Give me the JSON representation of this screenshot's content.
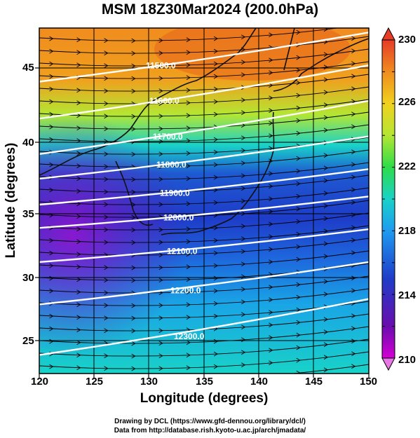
{
  "title": "MSM 18Z30Mar2024 (200.0hPa)",
  "axes": {
    "xlabel": "Longitude (degrees)",
    "ylabel": "Latitude  (degrees)",
    "xticks": [
      "120",
      "125",
      "130",
      "135",
      "140",
      "145",
      "150"
    ],
    "yticks": [
      "45",
      "40",
      "35",
      "30",
      "25"
    ]
  },
  "colorbar": {
    "labels": [
      "230",
      "226",
      "222",
      "218",
      "214",
      "210"
    ],
    "min": 210,
    "max": 230,
    "colors": [
      "#d400d4",
      "#6a0dad",
      "#1e3cc8",
      "#1e9bf0",
      "#19d2c8",
      "#2edc4a",
      "#b4e632",
      "#f0d21e",
      "#f08c1e",
      "#e63c28"
    ]
  },
  "contours": [
    {
      "label": "11500.0",
      "lat_west": 44.0,
      "lat_east": 47.6
    },
    {
      "label": "11600.0",
      "lat_west": 41.3,
      "lat_east": 45.2
    },
    {
      "label": "11700.0",
      "lat_west": 38.7,
      "lat_east": 42.6
    },
    {
      "label": "11800.0",
      "lat_west": 36.9,
      "lat_east": 40.0
    },
    {
      "label": "11900.0",
      "lat_west": 35.0,
      "lat_east": 37.6
    },
    {
      "label": "12000.0",
      "lat_west": 33.3,
      "lat_east": 35.6
    },
    {
      "label": "12100.0",
      "lat_west": 30.8,
      "lat_east": 33.2
    },
    {
      "label": "12200.0",
      "lat_west": 27.7,
      "lat_east": 30.8
    },
    {
      "label": "12300.0",
      "lat_west": 24.0,
      "lat_east": 28.1
    }
  ],
  "credits": {
    "line1": "Drawing by DCL (https://www.gfd-dennou.org/library/dcl/)",
    "line2": "Data from http://database.rish.kyoto-u.ac.jp/arch/jmadata/"
  }
}
